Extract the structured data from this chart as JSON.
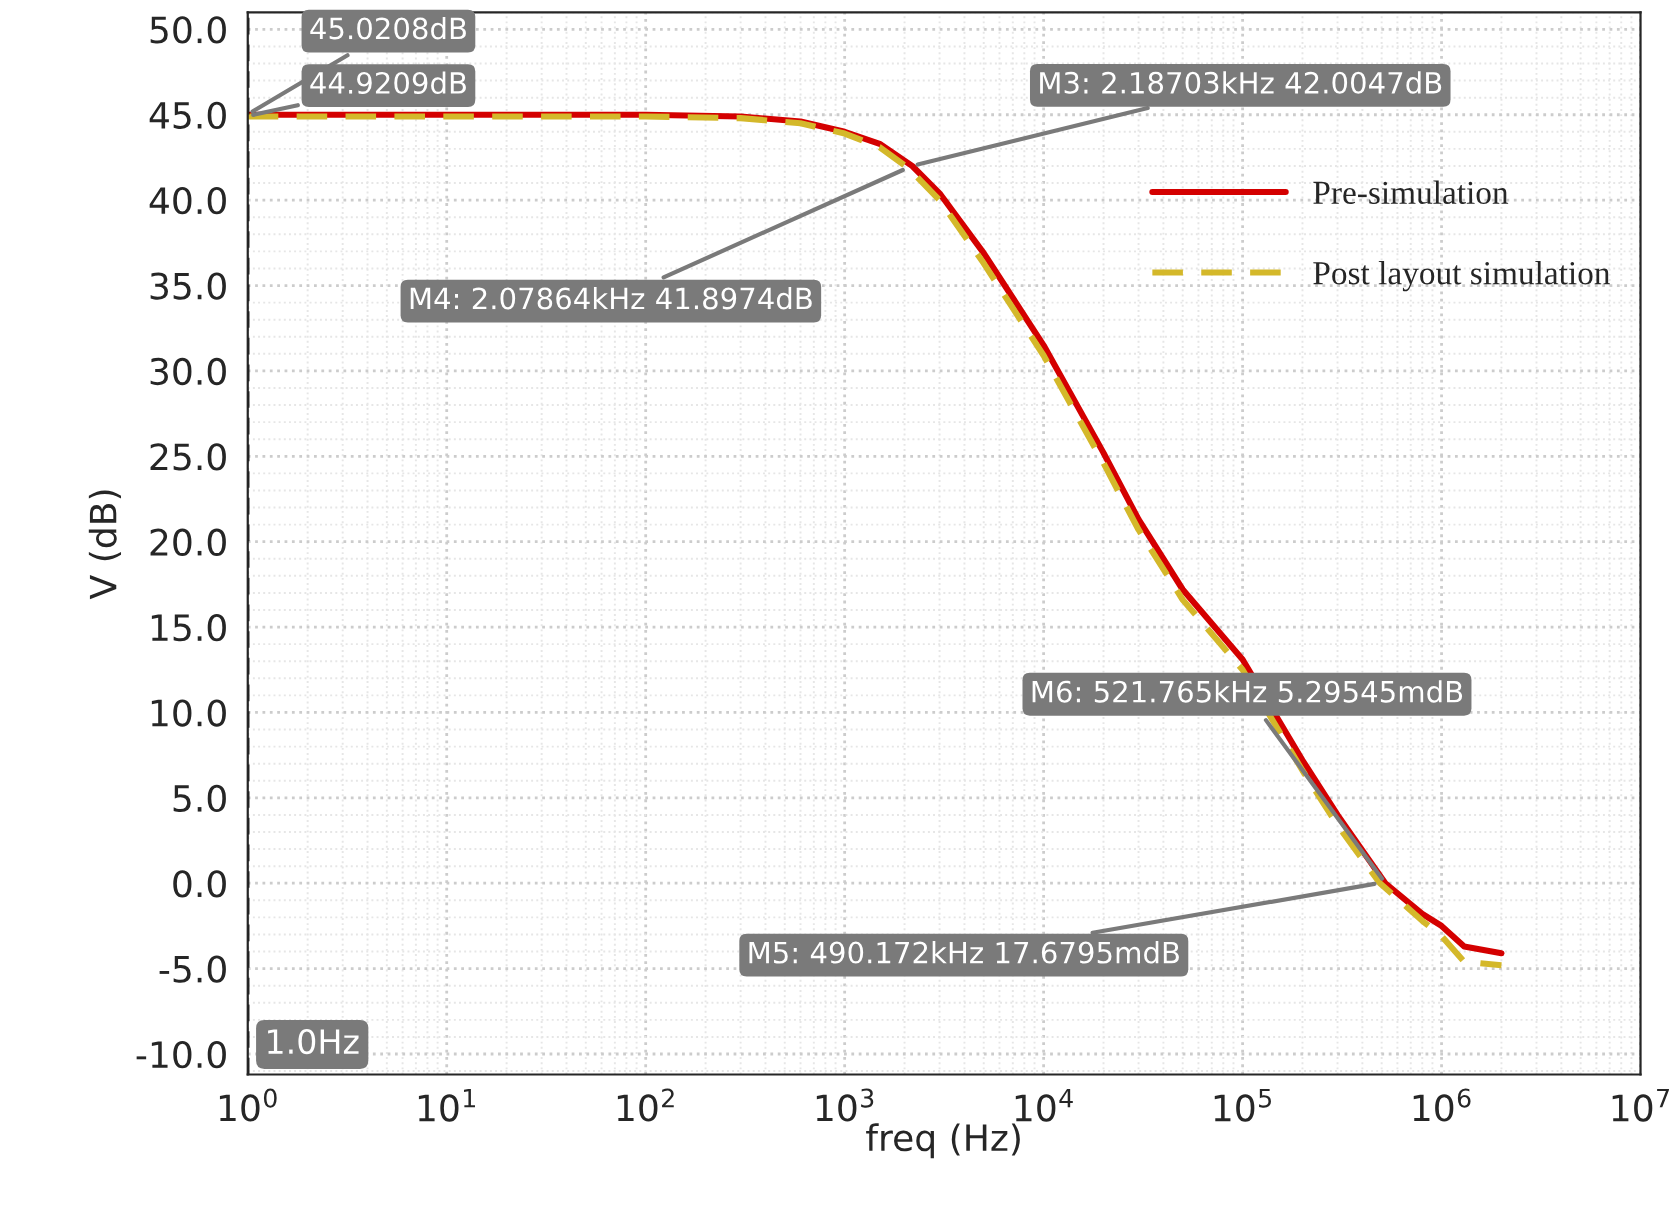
{
  "chart_data": {
    "type": "line",
    "xlabel": "freq (Hz)",
    "ylabel": "V (dB)",
    "log": "x",
    "xlim": [
      1,
      10000000
    ],
    "ylim": [
      -11.2,
      51
    ],
    "xticks": [
      {
        "value": 1,
        "label": "10$^{0}$"
      },
      {
        "value": 10,
        "label": "10$^{1}$"
      },
      {
        "value": 100,
        "label": "10$^{2}$"
      },
      {
        "value": 1000,
        "label": "10$^{3}$"
      },
      {
        "value": 10000,
        "label": "10$^{4}$"
      },
      {
        "value": 100000,
        "label": "10$^{5}$"
      },
      {
        "value": 1000000,
        "label": "10$^{6}$"
      },
      {
        "value": 10000000,
        "label": "10$^{7}$"
      }
    ],
    "yticks": [
      {
        "value": -10,
        "label": "-10.0"
      },
      {
        "value": -5,
        "label": "-5.0"
      },
      {
        "value": 0,
        "label": "0.0"
      },
      {
        "value": 5,
        "label": "5.0"
      },
      {
        "value": 10,
        "label": "10.0"
      },
      {
        "value": 15,
        "label": "15.0"
      },
      {
        "value": 20,
        "label": "20.0"
      },
      {
        "value": 25,
        "label": "25.0"
      },
      {
        "value": 30,
        "label": "30.0"
      },
      {
        "value": 35,
        "label": "35.0"
      },
      {
        "value": 40,
        "label": "40.0"
      },
      {
        "value": 45,
        "label": "45.0"
      },
      {
        "value": 50,
        "label": "50.0"
      }
    ],
    "grid": true,
    "legend": "top right",
    "series": [
      {
        "name": "Pre-simulation",
        "color": "#d40000",
        "line_style": "solid",
        "x": [
          1,
          10,
          100,
          300,
          600,
          1000,
          1500,
          2187.03,
          3000,
          5000,
          10000,
          20000,
          30000,
          50000,
          100000,
          200000,
          300000,
          521765,
          800000,
          1000000,
          1300000,
          2000000
        ],
        "values": [
          45.0,
          45.0,
          45.0,
          44.9,
          44.6,
          44.0,
          43.3,
          42.0,
          40.4,
          36.9,
          31.5,
          25.2,
          21.3,
          17.2,
          13.1,
          7.2,
          4.0,
          0.0,
          -1.8,
          -2.5,
          -3.7,
          -4.1
        ]
      },
      {
        "name": "Post layout simulation",
        "color": "#d4b82a",
        "line_style": "dashed",
        "x": [
          1,
          10,
          100,
          300,
          600,
          1000,
          1500,
          2078.64,
          3000,
          5000,
          10000,
          20000,
          30000,
          50000,
          100000,
          200000,
          300000,
          490172,
          800000,
          1000000,
          1300000,
          2000000
        ],
        "values": [
          44.9,
          44.9,
          44.9,
          44.8,
          44.5,
          43.9,
          43.1,
          41.9,
          40.0,
          36.3,
          30.9,
          24.6,
          20.7,
          16.6,
          12.5,
          6.6,
          3.4,
          0.0,
          -2.2,
          -3.1,
          -4.6,
          -4.8
        ]
      }
    ],
    "ref_lines": [
      {
        "axis": "x",
        "value": 1,
        "label": "1.0Hz",
        "color": "#000000",
        "line_style": "dashed"
      }
    ],
    "annotations": [
      {
        "text": "45.0208dB",
        "x": 1,
        "y": 45.0208
      },
      {
        "text": "44.9209dB",
        "x": 1,
        "y": 44.9209
      },
      {
        "text": "M3: 2.18703kHz 42.0047dB",
        "x": 2187.03,
        "y": 42.0047
      },
      {
        "text": "M4: 2.07864kHz 41.8974dB",
        "x": 2078.64,
        "y": 41.8974
      },
      {
        "text": "M6: 521.765kHz 5.29545mdB",
        "x": 521765,
        "y": 0.00529545
      },
      {
        "text": "M5: 490.172kHz 17.6795mdB",
        "x": 490172,
        "y": 0.0176795
      }
    ]
  }
}
